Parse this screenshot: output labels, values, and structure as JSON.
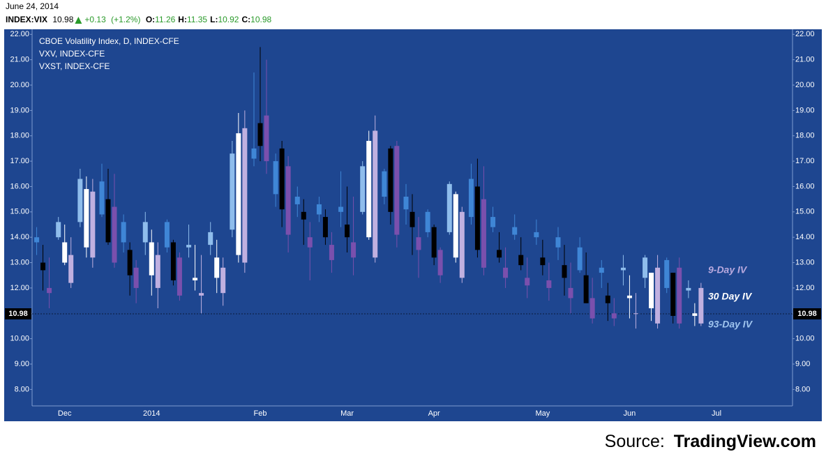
{
  "header": {
    "date": "June 24, 2014",
    "symbol": "INDEX:VIX",
    "last": "10.98",
    "change": "+0.13",
    "change_pct": "(+1.2%)",
    "ohlc": [
      {
        "key": "O:",
        "value": "11.26"
      },
      {
        "key": "H:",
        "value": "11.35"
      },
      {
        "key": "L:",
        "value": "10.92"
      },
      {
        "key": "C:",
        "value": "10.98"
      }
    ]
  },
  "chart_data": {
    "type": "candlestick",
    "categories": [
      null,
      "Dec",
      null,
      null,
      null,
      "2014",
      null,
      null,
      null,
      null,
      "Feb",
      null,
      null,
      null,
      "Mar",
      null,
      null,
      null,
      "Apr",
      null,
      null,
      null,
      null,
      "May",
      null,
      null,
      null,
      "Jun",
      null,
      null,
      null,
      "Jul",
      null,
      null,
      null
    ],
    "series": [
      {
        "name": "CBOE Volatility Index, D, INDEX-CFE",
        "up_color": "#ffffff",
        "down_color": "#000000",
        "open": [
          13.0,
          13.0,
          13.6,
          15.5,
          13.5,
          12.5,
          13.8,
          12.3,
          12.4,
          13.3,
          18.5,
          17.5,
          15.0,
          14.8,
          14.5,
          14.0,
          17.5,
          15.0,
          14.4,
          13.2,
          16.0,
          13.5,
          13.3,
          13.2,
          12.9,
          12.5,
          11.7,
          11.6,
          11.2,
          12.6,
          10.9,
          null,
          null,
          null,
          null
        ],
        "high": [
          13.7,
          14.5,
          16.4,
          16.7,
          13.8,
          14.3,
          13.9,
          13.7,
          13.9,
          18.9,
          21.5,
          17.8,
          15.5,
          15.1,
          16.0,
          18.2,
          17.6,
          15.7,
          14.5,
          15.8,
          17.1,
          14.2,
          14.0,
          13.9,
          13.7,
          13.4,
          12.2,
          12.5,
          12.6,
          12.6,
          11.4,
          null,
          null,
          null,
          null
        ],
        "low": [
          11.9,
          12.9,
          13.2,
          13.7,
          11.7,
          11.7,
          12.1,
          11.9,
          11.8,
          13.0,
          17.0,
          14.4,
          13.7,
          13.7,
          13.4,
          13.9,
          14.5,
          13.3,
          12.9,
          13.0,
          13.2,
          13.0,
          12.7,
          12.5,
          11.7,
          11.4,
          10.7,
          10.8,
          10.7,
          10.6,
          10.5,
          null,
          null,
          null,
          null
        ],
        "close": [
          12.7,
          13.8,
          15.9,
          13.8,
          12.5,
          13.8,
          12.3,
          12.4,
          13.2,
          18.1,
          17.6,
          15.1,
          14.7,
          14.0,
          14.0,
          17.8,
          15.0,
          14.4,
          13.2,
          15.7,
          13.5,
          13.2,
          12.9,
          12.9,
          12.4,
          11.4,
          11.4,
          11.7,
          12.6,
          10.9,
          11.0,
          null,
          null,
          null,
          null
        ]
      },
      {
        "name": "VXV, INDEX-CFE",
        "up_color": "#8fbdec",
        "down_color": "#3f86d6",
        "open": [
          14.0,
          14.0,
          14.6,
          16.2,
          14.6,
          13.8,
          14.6,
          13.6,
          13.7,
          14.3,
          17.5,
          17.0,
          15.6,
          15.3,
          15.2,
          15.0,
          16.6,
          15.6,
          15.0,
          14.2,
          16.3,
          14.8,
          14.4,
          14.2,
          14.0,
          13.6,
          12.8,
          12.7,
          12.4,
          13.1,
          11.9,
          null,
          null,
          null,
          null
        ],
        "high": [
          14.4,
          14.8,
          16.7,
          16.9,
          14.9,
          15.0,
          14.7,
          14.5,
          14.6,
          17.8,
          20.5,
          17.3,
          16.0,
          15.6,
          16.6,
          17.0,
          16.7,
          16.1,
          15.1,
          16.2,
          16.9,
          15.2,
          14.9,
          14.7,
          14.4,
          14.0,
          13.1,
          13.3,
          13.3,
          13.2,
          12.3,
          null,
          null,
          null,
          null
        ],
        "low": [
          13.3,
          13.9,
          14.4,
          14.8,
          13.4,
          13.3,
          13.4,
          13.2,
          13.3,
          14.0,
          16.8,
          15.2,
          14.8,
          14.6,
          14.4,
          14.9,
          15.3,
          14.5,
          14.0,
          14.1,
          14.5,
          14.2,
          13.9,
          13.7,
          13.1,
          12.6,
          12.0,
          12.1,
          12.0,
          11.8,
          11.6,
          null,
          null,
          null,
          null
        ],
        "close": [
          13.8,
          14.6,
          16.3,
          14.9,
          13.8,
          14.6,
          13.6,
          13.7,
          14.2,
          17.3,
          17.1,
          15.7,
          15.3,
          14.9,
          15.0,
          16.8,
          15.6,
          15.1,
          14.2,
          16.1,
          14.8,
          14.4,
          14.1,
          14.0,
          13.6,
          12.7,
          12.6,
          12.8,
          13.2,
          12.0,
          12.0,
          null,
          null,
          null,
          null
        ]
      },
      {
        "name": "VXST, INDEX-CFE",
        "up_color": "#c0b0e0",
        "down_color": "#7a50ad",
        "open": [
          12.0,
          12.2,
          13.2,
          15.2,
          12.8,
          12.0,
          13.2,
          11.7,
          11.8,
          13.0,
          18.8,
          16.8,
          14.0,
          13.7,
          13.8,
          13.2,
          17.6,
          14.0,
          13.5,
          12.4,
          15.5,
          12.8,
          12.4,
          12.3,
          12.0,
          11.6,
          11.0,
          11.0,
          10.6,
          12.8,
          10.6,
          null,
          null,
          null,
          null
        ],
        "high": [
          13.2,
          14.0,
          16.3,
          16.5,
          13.1,
          13.8,
          13.4,
          13.3,
          13.2,
          19.0,
          21.0,
          17.2,
          14.6,
          14.2,
          15.6,
          18.8,
          17.8,
          14.8,
          13.6,
          15.2,
          16.8,
          13.6,
          13.2,
          13.0,
          13.0,
          12.4,
          11.6,
          11.8,
          13.3,
          13.2,
          12.2,
          null,
          null,
          null,
          null
        ],
        "low": [
          11.2,
          12.0,
          12.8,
          12.8,
          11.4,
          11.2,
          11.5,
          11.0,
          11.3,
          12.6,
          16.5,
          13.4,
          12.3,
          12.6,
          12.5,
          13.0,
          13.6,
          12.4,
          12.2,
          12.2,
          12.5,
          12.0,
          11.6,
          11.5,
          11.0,
          10.6,
          10.5,
          10.4,
          10.4,
          10.4,
          10.5,
          null,
          null,
          null,
          null
        ],
        "close": [
          11.8,
          13.3,
          15.8,
          13.0,
          12.0,
          13.3,
          11.7,
          11.8,
          12.8,
          18.3,
          17.0,
          14.1,
          13.6,
          13.1,
          13.2,
          18.2,
          14.1,
          13.5,
          12.5,
          15.0,
          12.8,
          12.4,
          12.1,
          12.0,
          11.6,
          10.8,
          10.8,
          11.0,
          12.8,
          10.6,
          12.0,
          null,
          null,
          null,
          null
        ]
      }
    ],
    "ylim": [
      7.35,
      22.2
    ],
    "yticks": [
      {
        "value": 8,
        "label": "8.00"
      },
      {
        "value": 9,
        "label": "9.00"
      },
      {
        "value": 10,
        "label": "10.00"
      },
      {
        "value": 11,
        "label": "11.00"
      },
      {
        "value": 12,
        "label": "12.00"
      },
      {
        "value": 13,
        "label": "13.00"
      },
      {
        "value": 14,
        "label": "14.00"
      },
      {
        "value": 15,
        "label": "15.00"
      },
      {
        "value": 16,
        "label": "16.00"
      },
      {
        "value": 17,
        "label": "17.00"
      },
      {
        "value": 18,
        "label": "18.00"
      },
      {
        "value": 19,
        "label": "19.00"
      },
      {
        "value": 20,
        "label": "20.00"
      },
      {
        "value": 21,
        "label": "21.00"
      },
      {
        "value": 22,
        "label": "22.00"
      }
    ],
    "last_price": 10.98,
    "annotations": [
      {
        "text": "9-Day IV",
        "color": "#b9a9de"
      },
      {
        "text": "30 Day IV",
        "color": "#ffffff"
      },
      {
        "text": "93-Day IV",
        "color": "#9fc4ee"
      }
    ],
    "grid": false
  },
  "source": {
    "prefix": "Source:",
    "name": "TradingView.com"
  }
}
